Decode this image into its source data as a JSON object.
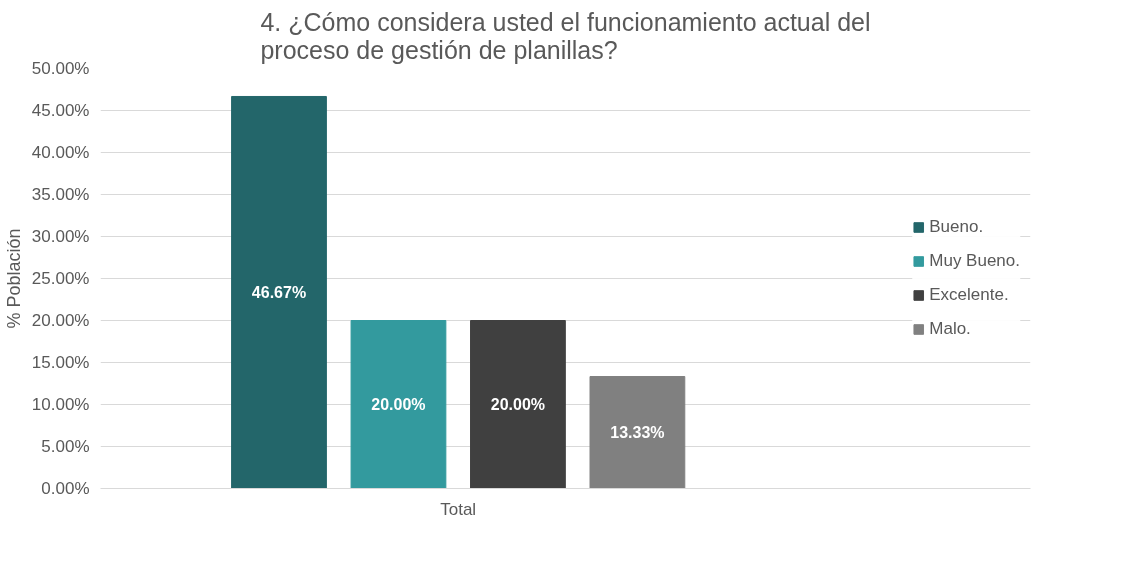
{
  "chart_data": {
    "type": "bar",
    "title": "4. ¿Cómo considera usted el funcionamiento actual del proceso de gestión de planillas?",
    "ylabel": "% Población",
    "categories": [
      "Total"
    ],
    "series": [
      {
        "name": "Bueno.",
        "color": "#23666a",
        "values": [
          46.67
        ],
        "value_labels": [
          "46.67%"
        ]
      },
      {
        "name": "Muy Bueno.",
        "color": "#339a9e",
        "values": [
          20.0
        ],
        "value_labels": [
          "20.00%"
        ]
      },
      {
        "name": "Excelente.",
        "color": "#404040",
        "values": [
          20.0
        ],
        "value_labels": [
          "20.00%"
        ]
      },
      {
        "name": "Malo.",
        "color": "#808080",
        "values": [
          13.33
        ],
        "value_labels": [
          "13.33%"
        ]
      }
    ],
    "ylim": [
      0,
      50
    ],
    "yticks": [
      {
        "value": 0,
        "label": "0.00%"
      },
      {
        "value": 5,
        "label": "5.00%"
      },
      {
        "value": 10,
        "label": "10.00%"
      },
      {
        "value": 15,
        "label": "15.00%"
      },
      {
        "value": 20,
        "label": "20.00%"
      },
      {
        "value": 25,
        "label": "25.00%"
      },
      {
        "value": 30,
        "label": "30.00%"
      },
      {
        "value": 35,
        "label": "35.00%"
      },
      {
        "value": 40,
        "label": "40.00%"
      },
      {
        "value": 45,
        "label": "45.00%"
      },
      {
        "value": 50,
        "label": "50.00%"
      }
    ],
    "grid": "y",
    "legend": "right"
  }
}
